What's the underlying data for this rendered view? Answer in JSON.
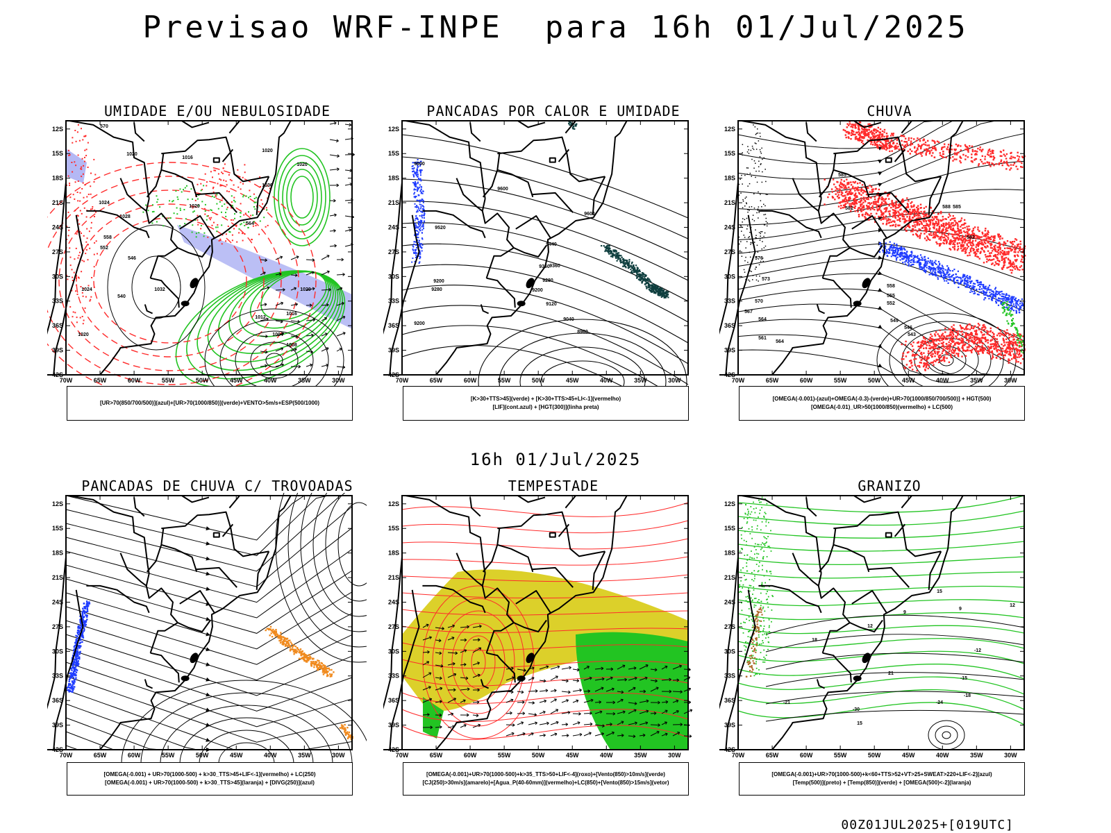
{
  "header": {
    "title": "Previsao WRF-INPE  para 16h 01/Jul/2025",
    "middle_title": "16h 01/Jul/2025"
  },
  "axes": {
    "lat_labels": [
      "12S",
      "15S",
      "18S",
      "21S",
      "24S",
      "27S",
      "30S",
      "33S",
      "36S",
      "39S",
      "42S"
    ],
    "lon_labels": [
      "70W",
      "65W",
      "60W",
      "55W",
      "50W",
      "45W",
      "40W",
      "35W",
      "30W"
    ]
  },
  "panels": [
    {
      "title": "UMIDADE E/OU NEBULOSIDADE",
      "legend": [
        "[UR>70(850/700/500)](azul)+[UR>70(1000/850)](verde)+VENTO>5m/s+ESP(500/1000)"
      ],
      "contour_labels": [
        "570",
        "1020",
        "1016",
        "1020",
        "1020",
        "1028",
        "1024",
        "1032",
        "1020",
        "1024",
        "1036",
        "1020",
        "564",
        "558",
        "540",
        "546",
        "552",
        "1012",
        "1016",
        "1004",
        "1008",
        "1020"
      ]
    },
    {
      "title": "PANCADAS POR CALOR E UMIDADE",
      "legend": [
        "[K>30+TTS>45](verde) + [K>30+TTS>45+LI<-1](vermelho)",
        "[LIF](cont.azul) + [HGT(300)](linha preta)"
      ],
      "contour_labels": [
        "9600",
        "9520",
        "9600",
        "9440",
        "9360",
        "9280",
        "9200",
        "9120",
        "9040",
        "8960",
        "9360",
        "9280",
        "9200",
        "9200",
        "9600"
      ]
    },
    {
      "title": "CHUVA",
      "legend": [
        "[OMEGA(-0.001)-(azul)+OMEGA(-0.3)-(verde)+UR>70(1000/850/700/500)] + HGT(500)",
        "[OMEGA(-0.01)_UR>50(1000/850)(vermelho) + LC(500)"
      ],
      "contour_labels": [
        "585",
        "582",
        "588",
        "576",
        "573",
        "570",
        "567",
        "564",
        "561",
        "558",
        "555",
        "552",
        "549",
        "546",
        "543",
        "564",
        "582",
        "585"
      ]
    },
    {
      "title": "PANCADAS DE CHUVA C/ TROVOADAS",
      "legend": [
        "[OMEGA(-0.001) + UR>70(1000-500) + k>30_TTS>45+LIF<-1](vermelho) + LC(250)",
        "[OMEGA(-0.001) + UR>70(1000-500) + k>30_TTS>45](laranja) + [DIVG(250)](azul)"
      ],
      "contour_labels": []
    },
    {
      "title": "TEMPESTADE",
      "legend": [
        "[OMEGA(-0.001)+UR>70(1000-500)+k>35_TTS>50+LIF<-4](roxo)+[Vento(850)>10m/s](verde)",
        "[CJ(250)>30m/s](amarelo)+[Agua_P(40-60mm)](vermelho)+LC(850)+[Vento(850)>15m/s](vetor)"
      ],
      "contour_labels": []
    },
    {
      "title": "GRANIZO",
      "legend": [
        "[OMEGA(-0.001)+UR>70(1000-500)+k<60+TTS>52+VT>25+SWEAT>220+LIF<-2](azul)",
        "[Temp(500)](preto) + [Temp(850)](verde) + [OMEGA(500)<-2](laranja)"
      ],
      "contour_labels": [
        "15",
        "9",
        "12",
        "18",
        "21",
        "-12",
        "-15",
        "-18",
        "-21",
        "-24",
        "-30",
        "15",
        "9",
        "12"
      ]
    }
  ],
  "footer": {
    "stamp": "00Z01JUL2025+[019UTC]"
  },
  "colors": {
    "red": "#ff2a2a",
    "green": "#22c422",
    "blue": "#1f3cff",
    "lavender": "#b4b8f4",
    "yellow": "#dcd02a",
    "orange": "#f08a1e",
    "teal": "#0f3f3f",
    "brown": "#b06a2a"
  }
}
